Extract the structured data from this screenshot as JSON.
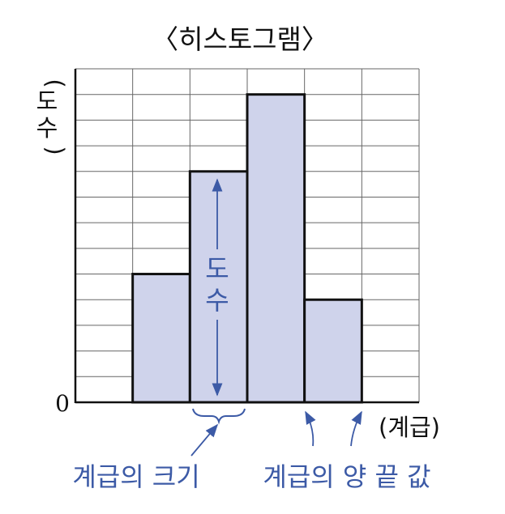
{
  "title": "〈히스토그램〉",
  "y_axis_label": {
    "open": "(",
    "chars": [
      "도",
      "수"
    ],
    "close": ")"
  },
  "x_axis_label": "(계급)",
  "origin_label": "0",
  "inner_label": {
    "chars": [
      "도",
      "수"
    ]
  },
  "annotations": {
    "class_width": "계급의 크기",
    "class_endpoints": "계급의 양 끝 값"
  },
  "colors": {
    "bar_fill": "#cfd3eb",
    "bar_stroke": "#111111",
    "grid": "#666666",
    "annotation": "#3c5aa6"
  },
  "chart_data": {
    "type": "bar",
    "title": "〈히스토그램〉",
    "xlabel": "(계급)",
    "ylabel": "(도수)",
    "grid": true,
    "ylim": [
      0,
      13
    ],
    "bins": 6,
    "values": [
      0,
      5,
      9,
      12,
      4,
      0
    ]
  }
}
